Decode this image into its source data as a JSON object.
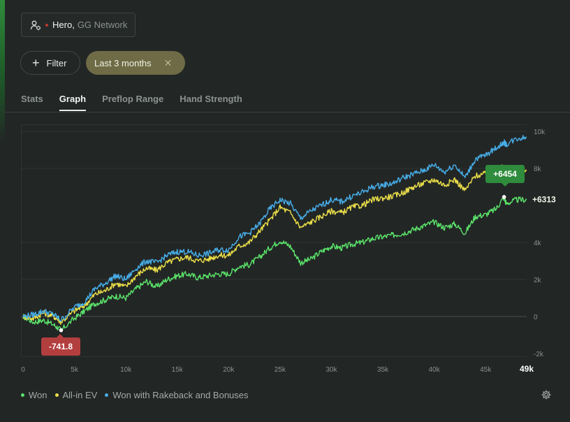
{
  "player": {
    "name": "Hero",
    "network": "GG Network",
    "status_color": "#c0392b"
  },
  "filters": {
    "filter_label": "Filter",
    "range_label": "Last 3 months",
    "clear_icon": "close-icon"
  },
  "tabs": [
    {
      "label": "Stats",
      "active": false
    },
    {
      "label": "Graph",
      "active": true
    },
    {
      "label": "Preflop Range",
      "active": false
    },
    {
      "label": "Hand Strength",
      "active": false
    }
  ],
  "chart_data": {
    "type": "line",
    "xlabel": "",
    "ylabel": "",
    "xlim": [
      0,
      49000
    ],
    "ylim": [
      -2000,
      10000
    ],
    "x_ticks": [
      "0",
      "5k",
      "10k",
      "15k",
      "20k",
      "25k",
      "30k",
      "35k",
      "40k",
      "45k"
    ],
    "x_end_label": "49k",
    "y_ticks": [
      "10k",
      "8k",
      "4k",
      "2k",
      "0",
      "-2k"
    ],
    "y_tick_values": [
      10000,
      8000,
      4000,
      2000,
      0,
      -2000
    ],
    "grid": true,
    "legend_position": "bottom-left",
    "x": [
      0,
      1000,
      2000,
      3000,
      3700,
      5000,
      6000,
      7000,
      8000,
      9000,
      10000,
      11000,
      12000,
      13000,
      14000,
      15000,
      16000,
      17000,
      18000,
      19000,
      20000,
      21000,
      22000,
      23000,
      24000,
      25000,
      26000,
      27000,
      28000,
      29000,
      30000,
      31000,
      32000,
      33000,
      34000,
      35000,
      36000,
      37000,
      38000,
      39000,
      40000,
      41000,
      42000,
      43000,
      44000,
      45000,
      46000,
      46800,
      47000,
      48000,
      49000
    ],
    "series": [
      {
        "name": "Won",
        "color": "#5be36a",
        "values": [
          0,
          -300,
          -200,
          -450,
          -742,
          -100,
          300,
          700,
          900,
          1100,
          1000,
          1500,
          1900,
          1600,
          2000,
          2200,
          2300,
          2100,
          2200,
          2300,
          2300,
          2700,
          2800,
          3200,
          3700,
          4100,
          3800,
          2900,
          3100,
          3500,
          3800,
          3700,
          3900,
          4000,
          4200,
          4300,
          4400,
          4500,
          4700,
          4900,
          5100,
          4800,
          5000,
          4500,
          5400,
          5500,
          5800,
          6454,
          6100,
          6300,
          6313
        ]
      },
      {
        "name": "All-in EV",
        "color": "#ece04a",
        "values": [
          0,
          -100,
          200,
          0,
          -300,
          300,
          600,
          1200,
          1400,
          1800,
          1600,
          2200,
          2600,
          2500,
          2900,
          3100,
          3200,
          3000,
          3100,
          3300,
          3300,
          3800,
          4000,
          4600,
          5200,
          5900,
          5600,
          4800,
          5100,
          5400,
          5700,
          5600,
          5900,
          6000,
          6300,
          6400,
          6500,
          6700,
          7000,
          7200,
          7400,
          7100,
          7400,
          6800,
          7600,
          7700,
          7900,
          8100,
          7800,
          8000,
          7900
        ]
      },
      {
        "name": "Won with Rakeback and Bonuses",
        "color": "#47aee9",
        "values": [
          0,
          100,
          300,
          100,
          -200,
          500,
          800,
          1500,
          1800,
          2200,
          2000,
          2600,
          3000,
          2900,
          3300,
          3500,
          3500,
          3300,
          3400,
          3600,
          3600,
          4300,
          4500,
          5000,
          5800,
          6300,
          6100,
          5300,
          5700,
          6000,
          6300,
          6200,
          6500,
          6700,
          7000,
          7100,
          7200,
          7500,
          7700,
          7900,
          8200,
          7800,
          8200,
          7500,
          8500,
          8700,
          9100,
          9400,
          9300,
          9600,
          9700
        ]
      }
    ],
    "annotations": [
      {
        "label": "-741.8",
        "x": 3700,
        "y": -741.8,
        "color": "#b33e3e"
      },
      {
        "label": "+6454",
        "x": 46800,
        "y": 6454,
        "color": "#2e8c3c"
      },
      {
        "label": "+6313",
        "x": 49000,
        "y": 6313
      }
    ]
  },
  "settings_icon": "gear-icon"
}
